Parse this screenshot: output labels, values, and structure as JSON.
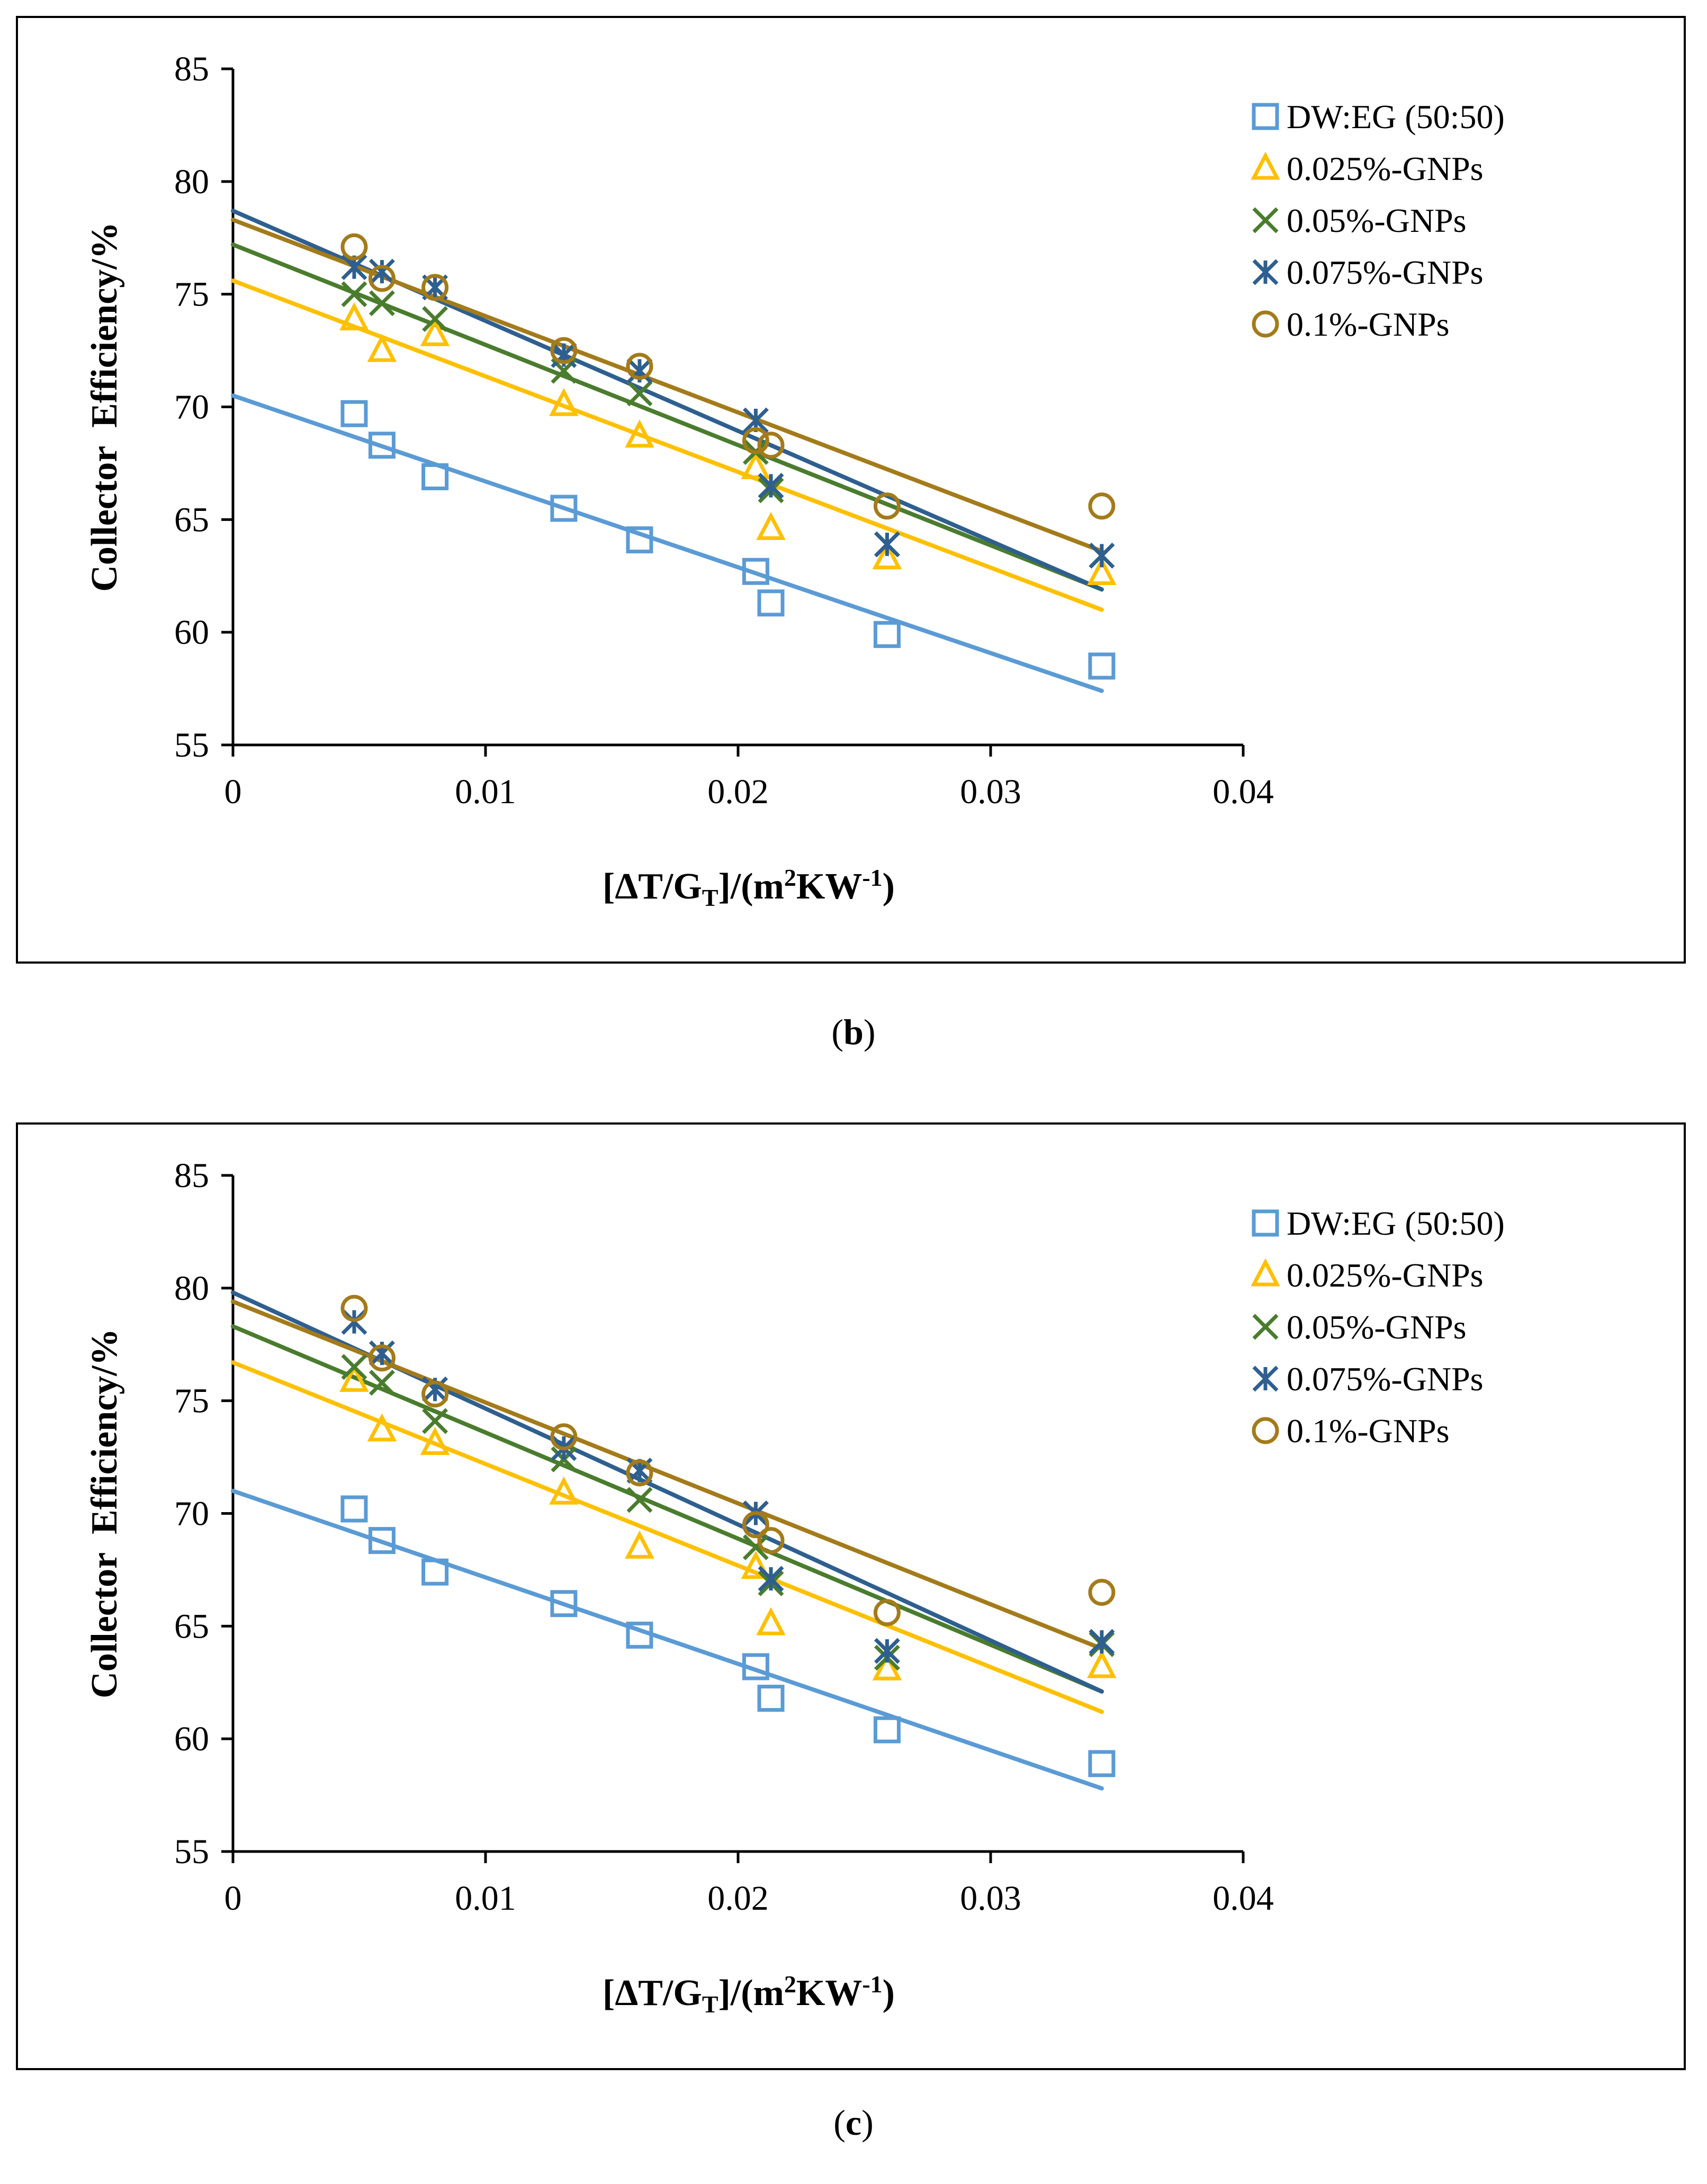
{
  "figure": {
    "panels": [
      {
        "id": "b",
        "caption_open": "(",
        "caption_letter": "b",
        "caption_close": ")"
      },
      {
        "id": "c",
        "caption_open": "(",
        "caption_letter": "c",
        "caption_close": ")"
      }
    ]
  },
  "chart_data": [
    {
      "panel": "b",
      "type": "scatter",
      "title": "",
      "xlabel": "[ΔT/G_T]/(m²KW⁻¹)",
      "xlabel_parts": {
        "a": "[ΔT/G",
        "sub": "T",
        "b": "]/(m",
        "sup1": "2",
        "c": "KW",
        "sup2": "-1",
        "d": ")"
      },
      "ylabel": "Collector  Efficiency/%",
      "xlim": [
        0,
        0.04
      ],
      "ylim": [
        55,
        85
      ],
      "xticks": [
        0,
        0.01,
        0.02,
        0.03,
        0.04
      ],
      "xtick_labels": [
        "0",
        "0.01",
        "0.02",
        "0.03",
        "0.04"
      ],
      "yticks": [
        55,
        60,
        65,
        70,
        75,
        80,
        85
      ],
      "ytick_labels": [
        "55",
        "60",
        "65",
        "70",
        "75",
        "80",
        "85"
      ],
      "grid": false,
      "legend_position": "top-right",
      "x": [
        0.0048,
        0.0059,
        0.008,
        0.0131,
        0.0161,
        0.0207,
        0.0213,
        0.0259,
        0.0344
      ],
      "series": [
        {
          "name": "DW:EG (50:50)",
          "marker": "square",
          "color": "#5b9bd5",
          "values": [
            69.7,
            68.3,
            66.9,
            65.5,
            64.1,
            62.7,
            61.3,
            59.9,
            58.5
          ],
          "trend": [
            70.5,
            57.4
          ]
        },
        {
          "name": "0.025%-GNPs",
          "marker": "triangle",
          "color": "#ffc000",
          "values": [
            73.9,
            72.5,
            73.2,
            70.1,
            68.7,
            67.3,
            64.6,
            63.3,
            62.6
          ],
          "trend": [
            75.6,
            61.0
          ]
        },
        {
          "name": "0.05%-GNPs",
          "marker": "x",
          "color": "#4a7c2e",
          "values": [
            75.0,
            74.6,
            73.9,
            71.6,
            70.6,
            68.0,
            66.3,
            63.9,
            63.4
          ],
          "trend": [
            77.2,
            61.9
          ]
        },
        {
          "name": "0.075%-GNPs",
          "marker": "star",
          "color": "#2e5f8f",
          "values": [
            76.2,
            76.0,
            75.3,
            72.3,
            71.6,
            69.4,
            66.5,
            63.9,
            63.4
          ],
          "trend": [
            78.7,
            61.9
          ]
        },
        {
          "name": "0.1%-GNPs",
          "marker": "circle",
          "color": "#a37b1a",
          "values": [
            77.1,
            75.7,
            75.3,
            72.5,
            71.8,
            68.5,
            68.3,
            65.6,
            65.6
          ],
          "trend": [
            78.3,
            63.6
          ]
        }
      ]
    },
    {
      "panel": "c",
      "type": "scatter",
      "title": "",
      "xlabel": "[ΔT/G_T]/(m²KW⁻¹)",
      "xlabel_parts": {
        "a": "[ΔT/G",
        "sub": "T",
        "b": "]/(m",
        "sup1": "2",
        "c": "KW",
        "sup2": "-1",
        "d": ")"
      },
      "ylabel": "Collector  Efficiency/%",
      "xlim": [
        0,
        0.04
      ],
      "ylim": [
        55,
        85
      ],
      "xticks": [
        0,
        0.01,
        0.02,
        0.03,
        0.04
      ],
      "xtick_labels": [
        "0",
        "0.01",
        "0.02",
        "0.03",
        "0.04"
      ],
      "yticks": [
        55,
        60,
        65,
        70,
        75,
        80,
        85
      ],
      "ytick_labels": [
        "55",
        "60",
        "65",
        "70",
        "75",
        "80",
        "85"
      ],
      "grid": false,
      "legend_position": "top-right",
      "x": [
        0.0048,
        0.0059,
        0.008,
        0.0131,
        0.0161,
        0.0207,
        0.0213,
        0.0259,
        0.0344
      ],
      "series": [
        {
          "name": "DW:EG (50:50)",
          "marker": "square",
          "color": "#5b9bd5",
          "values": [
            70.2,
            68.8,
            67.4,
            66.0,
            64.6,
            63.2,
            61.8,
            60.4,
            58.9
          ],
          "trend": [
            71.0,
            57.8
          ]
        },
        {
          "name": "0.025%-GNPs",
          "marker": "triangle",
          "color": "#ffc000",
          "values": [
            75.9,
            73.7,
            73.1,
            70.9,
            68.5,
            67.6,
            65.1,
            63.1,
            63.2
          ],
          "trend": [
            76.7,
            61.2
          ]
        },
        {
          "name": "0.05%-GNPs",
          "marker": "x",
          "color": "#4a7c2e",
          "values": [
            76.5,
            75.8,
            74.1,
            72.4,
            70.6,
            68.5,
            66.9,
            63.6,
            64.2
          ],
          "trend": [
            78.3,
            62.1
          ]
        },
        {
          "name": "0.075%-GNPs",
          "marker": "star",
          "color": "#2e5f8f",
          "values": [
            78.5,
            77.1,
            75.5,
            72.9,
            71.9,
            70.0,
            67.1,
            63.9,
            64.3
          ],
          "trend": [
            79.8,
            62.1
          ]
        },
        {
          "name": "0.1%-GNPs",
          "marker": "circle",
          "color": "#a37b1a",
          "values": [
            79.1,
            76.9,
            75.3,
            73.4,
            71.8,
            69.5,
            68.8,
            65.6,
            66.5
          ],
          "trend": [
            79.4,
            64.0
          ]
        }
      ]
    }
  ]
}
